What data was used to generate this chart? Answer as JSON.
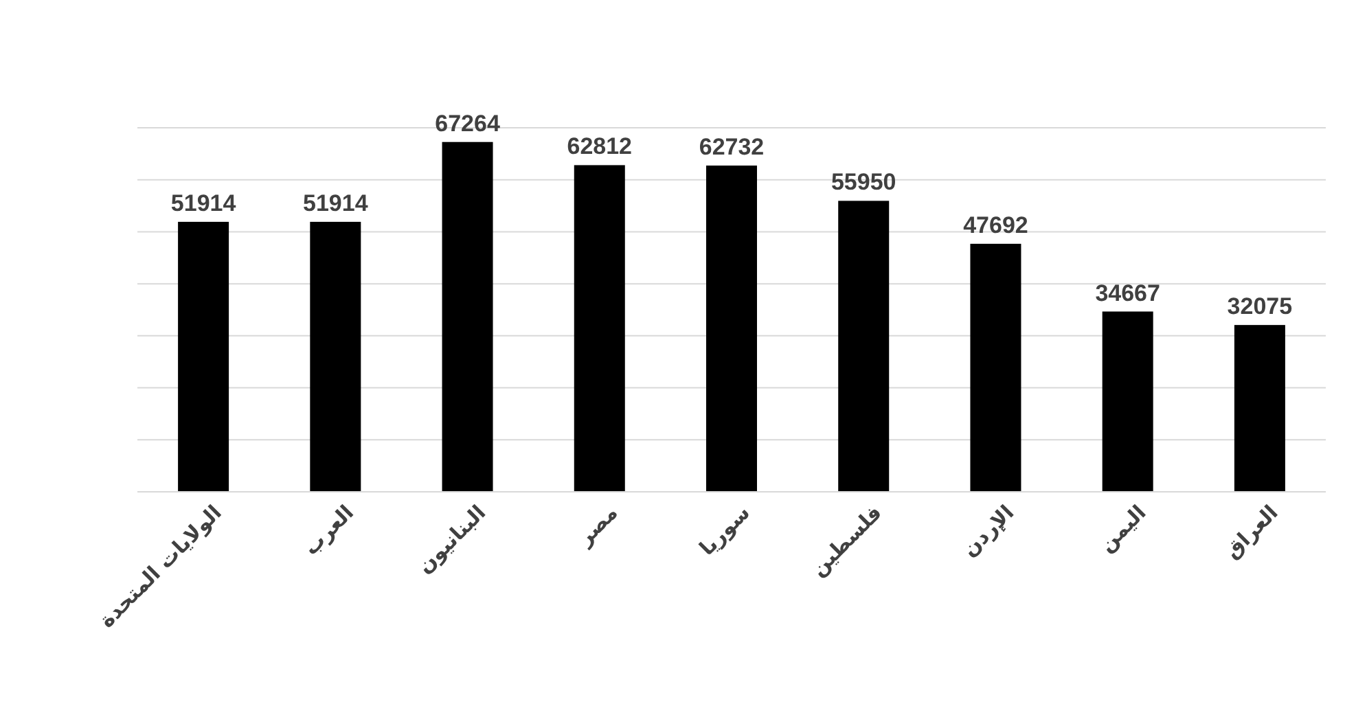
{
  "chart_data": {
    "type": "bar",
    "categories": [
      "الولايات المتحدة",
      "العرب",
      "البنانيون",
      "مصر",
      "سوريا",
      "فلسطين",
      "الإردن",
      "اليمن",
      "العراق"
    ],
    "values": [
      51914,
      51914,
      67264,
      62812,
      62732,
      55950,
      47692,
      34667,
      32075
    ],
    "color": "#000000",
    "data_labels": true,
    "ylim": [
      0,
      70000
    ],
    "yticks": [
      {
        "value": 0,
        "label": null
      },
      {
        "value": 10000,
        "label": null
      },
      {
        "value": 20000,
        "label": null
      },
      {
        "value": 30000,
        "label": null
      },
      {
        "value": 40000,
        "label": null
      },
      {
        "value": 50000,
        "label": null
      },
      {
        "value": 60000,
        "label": null
      },
      {
        "value": 70000,
        "label": null
      }
    ],
    "grid": "y",
    "tick_labels": "x"
  }
}
